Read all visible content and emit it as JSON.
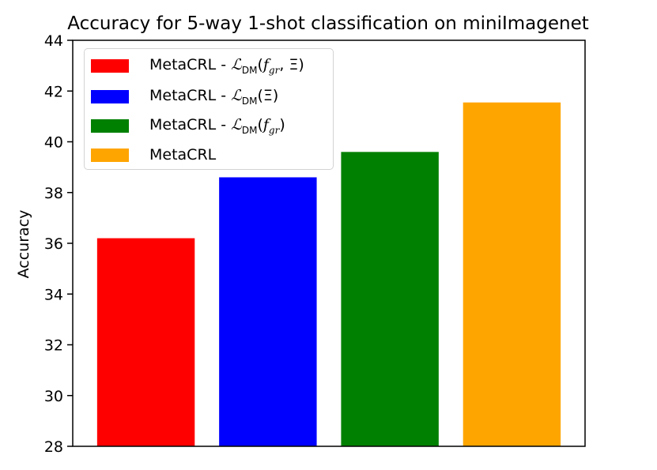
{
  "chart_data": {
    "type": "bar",
    "title": "Accuracy for 5-way 1-shot classification on miniImagenet",
    "xlabel": "",
    "ylabel": "Accuracy",
    "ylim": [
      28,
      44
    ],
    "yticks": [
      "28",
      "30",
      "32",
      "34",
      "36",
      "38",
      "40",
      "42",
      "44"
    ],
    "legend_position": "upper-left",
    "grid": false,
    "bars": [
      {
        "name": "MetaCRL - ℒDM(fgr, Ξ)",
        "value": 36.2,
        "color": "#ff0000"
      },
      {
        "name": "MetaCRL - ℒDM(Ξ)",
        "value": 38.6,
        "color": "#0000ff"
      },
      {
        "name": "MetaCRL - ℒDM(fgr)",
        "value": 39.6,
        "color": "#008000"
      },
      {
        "name": "MetaCRL",
        "value": 41.55,
        "color": "#ffa500"
      }
    ]
  }
}
